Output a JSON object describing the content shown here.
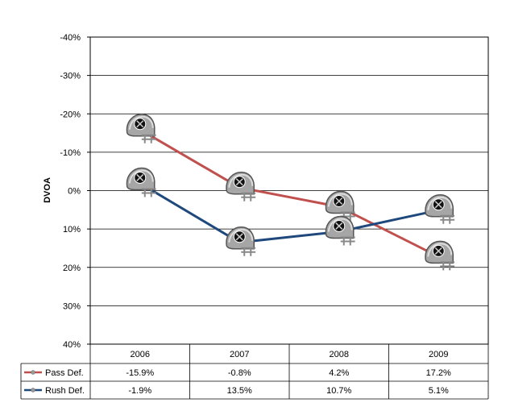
{
  "chart_data": {
    "type": "line",
    "title": "",
    "xlabel": "",
    "ylabel": "DVOA",
    "categories": [
      "2006",
      "2007",
      "2008",
      "2009"
    ],
    "ylim": [
      40,
      -40
    ],
    "y_axis_reversed": true,
    "y_ticks": [
      "-40%",
      "-30%",
      "-20%",
      "-10%",
      "0%",
      "10%",
      "20%",
      "30%",
      "40%"
    ],
    "grid": true,
    "legend_placement": "data table below chart",
    "marker": "helmet-icon",
    "series": [
      {
        "name": "Pass Def.",
        "color": "#c0504d",
        "values": [
          -15.9,
          -0.8,
          4.2,
          17.2
        ],
        "labels": [
          "-15.9%",
          "-0.8%",
          "4.2%",
          "17.2%"
        ]
      },
      {
        "name": "Rush Def.",
        "color": "#1f497d",
        "values": [
          -1.9,
          13.5,
          10.7,
          5.1
        ],
        "labels": [
          "-1.9%",
          "13.5%",
          "10.7%",
          "5.1%"
        ]
      }
    ]
  }
}
